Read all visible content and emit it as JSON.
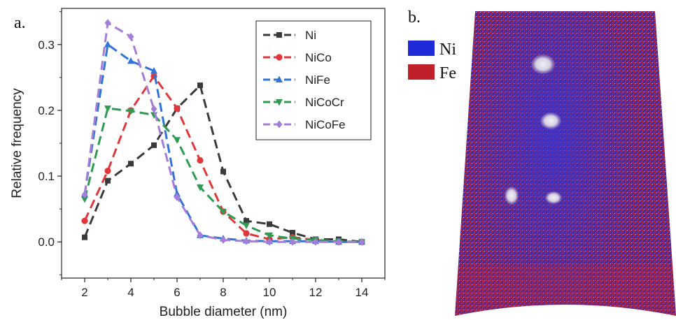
{
  "figure": {
    "panel_a_label": "a.",
    "panel_b_label": "b."
  },
  "chart_data": {
    "type": "line",
    "title": "",
    "xlabel": "Bubble diameter (nm)",
    "ylabel": "Relative frequency",
    "xlim": [
      1,
      15
    ],
    "ylim": [
      -0.055,
      0.355
    ],
    "xticks": [
      2,
      4,
      6,
      8,
      10,
      12,
      14
    ],
    "yticks": [
      0.0,
      0.1,
      0.2,
      0.3
    ],
    "ytick_labels": [
      "0.0",
      "0.1",
      "0.2",
      "0.3"
    ],
    "grid": false,
    "legend_position": "top-right",
    "x": [
      2,
      3,
      4,
      5,
      6,
      7,
      8,
      9,
      10,
      11,
      12,
      13,
      14
    ],
    "series": [
      {
        "name": "Ni",
        "color": "#3a3a3a",
        "marker": "square",
        "values": [
          0.007,
          0.093,
          0.119,
          0.147,
          0.203,
          0.238,
          0.107,
          0.032,
          0.027,
          0.014,
          0.004,
          0.004,
          0.0
        ]
      },
      {
        "name": "NiCo",
        "color": "#e0373a",
        "marker": "circle",
        "values": [
          0.032,
          0.108,
          0.2,
          0.252,
          0.203,
          0.124,
          0.046,
          0.013,
          0.004,
          0.007,
          0.003,
          0.0,
          0.0
        ]
      },
      {
        "name": "NiFe",
        "color": "#2f74d6",
        "marker": "triangle-up",
        "values": [
          0.072,
          0.3,
          0.275,
          0.26,
          0.073,
          0.01,
          0.005,
          0.002,
          0.001,
          0.001,
          0.001,
          0.0,
          0.0
        ]
      },
      {
        "name": "NiCoCr",
        "color": "#2f9a52",
        "marker": "triangle-down",
        "values": [
          0.065,
          0.203,
          0.199,
          0.193,
          0.155,
          0.083,
          0.046,
          0.025,
          0.01,
          0.005,
          0.003,
          0.001,
          0.0
        ]
      },
      {
        "name": "NiCoFe",
        "color": "#a47ed8",
        "marker": "diamond",
        "values": [
          0.072,
          0.333,
          0.312,
          0.202,
          0.068,
          0.01,
          0.003,
          0.001,
          0.0,
          0.0,
          0.0,
          0.0,
          0.0
        ]
      }
    ]
  },
  "element_legend": [
    {
      "label": "Ni",
      "color": "#1f2ad8"
    },
    {
      "label": "Fe",
      "color": "#c0202a"
    }
  ]
}
